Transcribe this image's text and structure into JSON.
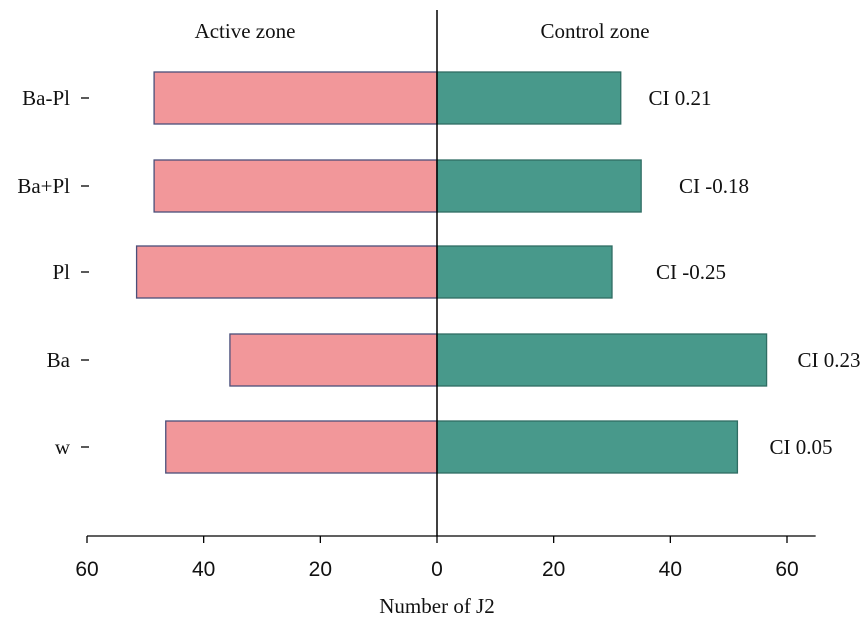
{
  "chart_data": {
    "type": "bar",
    "orientation": "horizontal",
    "diverging": true,
    "xlabel": "Number of J2",
    "xlim": [
      -60,
      65
    ],
    "x_tick_values": [
      -60,
      -40,
      -20,
      0,
      20,
      40,
      60
    ],
    "x_tick_labels": [
      "60",
      "40",
      "20",
      "0",
      "20",
      "40",
      "60"
    ],
    "categories": [
      "Ba-Pl",
      "Ba+Pl",
      "Pl",
      "Ba",
      "w"
    ],
    "series": [
      {
        "name": "Active zone",
        "values": [
          48.5,
          48.5,
          51.5,
          35.5,
          46.5
        ],
        "color": "#f2979a"
      },
      {
        "name": "Control zone",
        "values": [
          31.5,
          35,
          30,
          56.5,
          51.5
        ],
        "color": "#48998b"
      }
    ],
    "annotations": [
      "CI 0.21",
      "CI -0.18",
      "CI -0.25",
      "CI 0.23",
      "CI 0.05"
    ],
    "zone_labels": {
      "left": "Active zone",
      "right": "Control zone"
    },
    "grid": false,
    "bar_edge_color": "#4a4f7a"
  }
}
